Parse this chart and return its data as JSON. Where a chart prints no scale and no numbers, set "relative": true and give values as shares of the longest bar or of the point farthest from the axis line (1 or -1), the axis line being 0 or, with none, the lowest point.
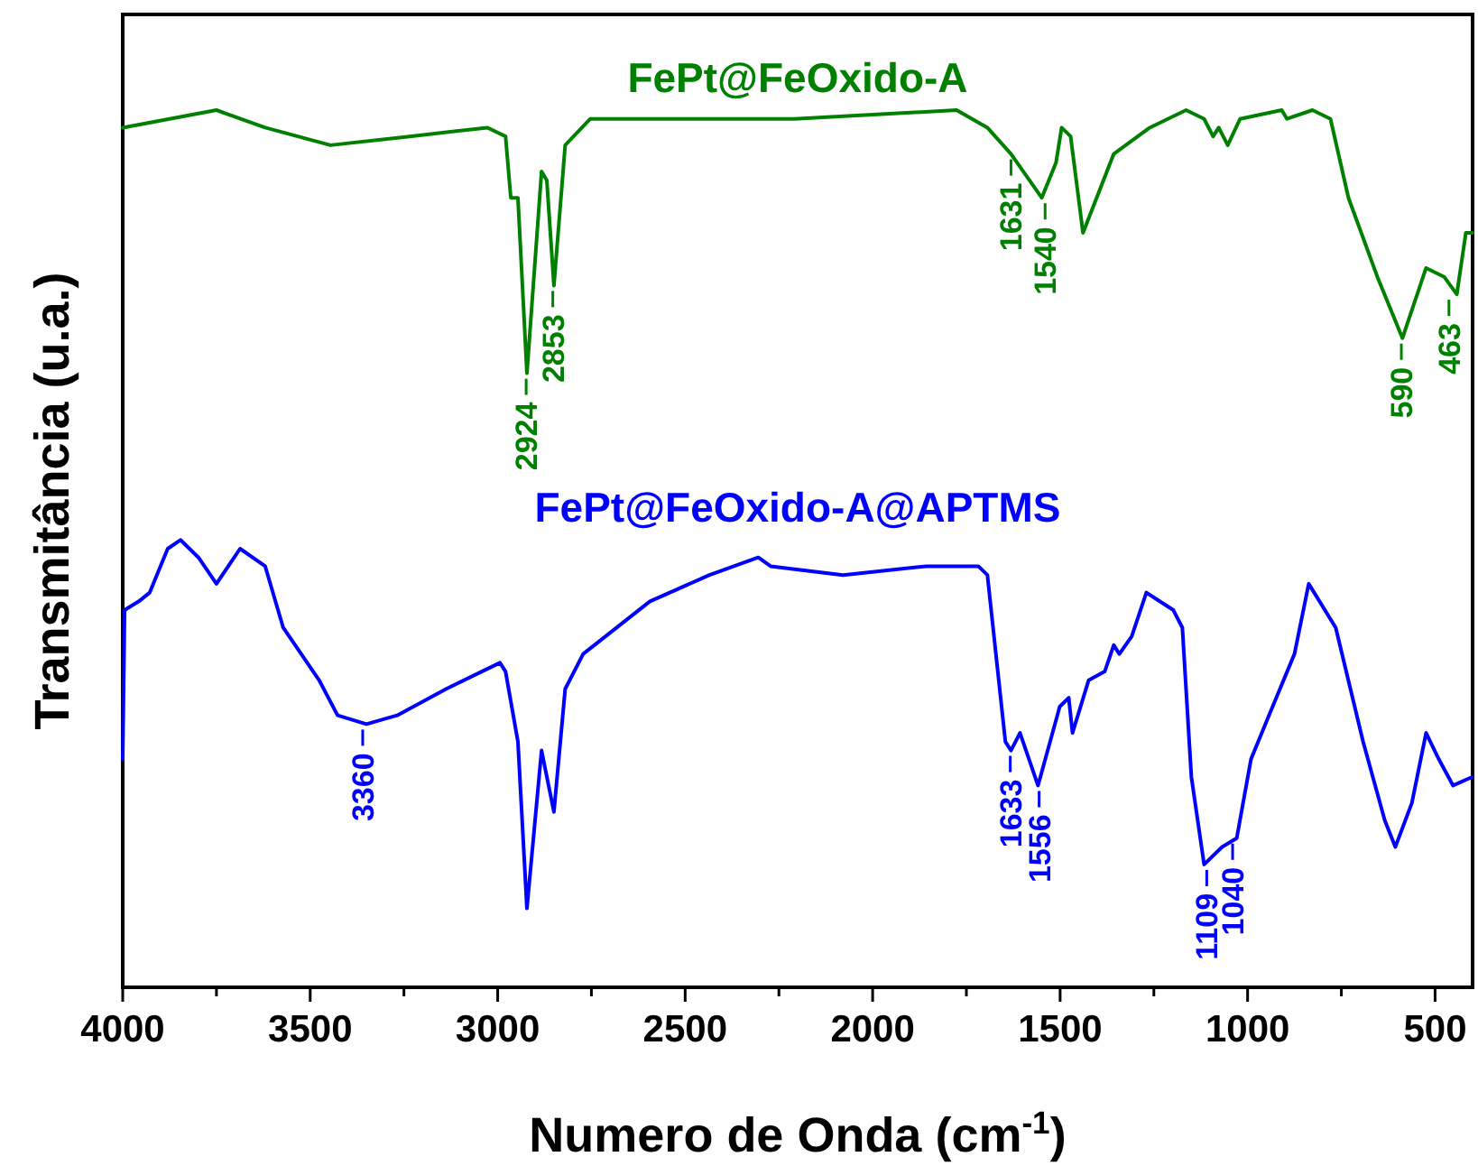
{
  "chart_data": {
    "type": "line",
    "relative": true,
    "xlabel": "Numero de Onda (cm$^{-1}$)",
    "ylabel": "Transmitância (u.a.)",
    "xlim": [
      4000,
      400
    ],
    "xticks": [
      4000,
      {
        "value": 3750,
        "label": null
      },
      3500,
      {
        "value": 3250,
        "label": null
      },
      3000,
      {
        "value": 2750,
        "label": null
      },
      2500,
      {
        "value": 2250,
        "label": null
      },
      2000,
      {
        "value": 1750,
        "label": null
      },
      1500,
      {
        "value": 1250,
        "label": null
      },
      1000,
      {
        "value": 750,
        "label": null
      },
      500
    ],
    "tick_labels": "x",
    "grid": false,
    "legend": false,
    "marker": "none",
    "line_style": "solid",
    "series": [
      {
        "name": "FePt@FeOxido-A",
        "color": "#008000",
        "x": [
          4000,
          3750,
          3620,
          3446,
          3235,
          3027,
          2979,
          2965,
          2946,
          2922,
          2883,
          2869,
          2850,
          2820,
          2753,
          2387,
          2353,
          2209,
          1776,
          1694,
          1631,
          1549,
          1511,
          1496,
          1472,
          1439,
          1357,
          1261,
          1164,
          1116,
          1092,
          1077,
          1053,
          1020,
          909,
          895,
          827,
          779,
          731,
          654,
          587,
          524,
          476,
          442,
          418,
          400
        ],
        "values": [
          0.98,
          1.0,
          0.98,
          0.96,
          0.97,
          0.98,
          0.97,
          0.9,
          0.9,
          0.7,
          0.93,
          0.92,
          0.8,
          0.96,
          0.99,
          0.99,
          0.99,
          0.99,
          1.0,
          0.98,
          0.95,
          0.9,
          0.94,
          0.98,
          0.97,
          0.86,
          0.95,
          0.98,
          1.0,
          0.99,
          0.97,
          0.98,
          0.96,
          0.99,
          1.0,
          0.99,
          1.0,
          0.99,
          0.9,
          0.81,
          0.74,
          0.82,
          0.81,
          0.79,
          0.86,
          0.86
        ]
      },
      {
        "name": "FePt@FeOxido-A@APTMS",
        "color": "#0000ff",
        "x": [
          4000,
          3995,
          3957,
          3928,
          3880,
          3846,
          3798,
          3750,
          3687,
          3620,
          3572,
          3476,
          3427,
          3350,
          3268,
          3138,
          2994,
          2979,
          2946,
          2922,
          2883,
          2850,
          2820,
          2772,
          2594,
          2435,
          2305,
          2272,
          2079,
          1857,
          1742,
          1718,
          1694,
          1646,
          1631,
          1607,
          1559,
          1501,
          1477,
          1467,
          1424,
          1381,
          1357,
          1342,
          1309,
          1270,
          1198,
          1174,
          1150,
          1116,
          1068,
          1029,
          991,
          943,
          875,
          837,
          765,
          692,
          634,
          606,
          562,
          524,
          490,
          452,
          400
        ],
        "values": [
          0.26,
          0.43,
          0.44,
          0.45,
          0.5,
          0.51,
          0.49,
          0.46,
          0.5,
          0.48,
          0.41,
          0.35,
          0.31,
          0.3,
          0.31,
          0.34,
          0.37,
          0.36,
          0.28,
          0.09,
          0.27,
          0.2,
          0.34,
          0.38,
          0.44,
          0.47,
          0.49,
          0.48,
          0.47,
          0.48,
          0.48,
          0.48,
          0.47,
          0.28,
          0.27,
          0.29,
          0.23,
          0.32,
          0.33,
          0.29,
          0.35,
          0.36,
          0.39,
          0.38,
          0.4,
          0.45,
          0.43,
          0.41,
          0.24,
          0.14,
          0.16,
          0.17,
          0.26,
          0.31,
          0.38,
          0.46,
          0.41,
          0.28,
          0.19,
          0.16,
          0.21,
          0.29,
          0.26,
          0.23,
          0.24
        ]
      }
    ],
    "annotations": [
      {
        "text": "2924",
        "x": 2924,
        "y": 0.7
      },
      {
        "text": "2853",
        "x": 2853,
        "y": 0.8
      },
      {
        "text": "1631",
        "x": 1631,
        "y": 0.95
      },
      {
        "text": "1540",
        "x": 1540,
        "y": 0.9
      },
      {
        "text": "590",
        "x": 590,
        "y": 0.74
      },
      {
        "text": "463",
        "x": 463,
        "y": 0.79
      },
      {
        "text": "3360",
        "x": 3360,
        "y": 0.3
      },
      {
        "text": "1633",
        "x": 1633,
        "y": 0.27
      },
      {
        "text": "1556",
        "x": 1556,
        "y": 0.23
      },
      {
        "text": "1109",
        "x": 1109,
        "y": 0.14
      },
      {
        "text": "1040",
        "x": 1040,
        "y": 0.17
      }
    ]
  }
}
